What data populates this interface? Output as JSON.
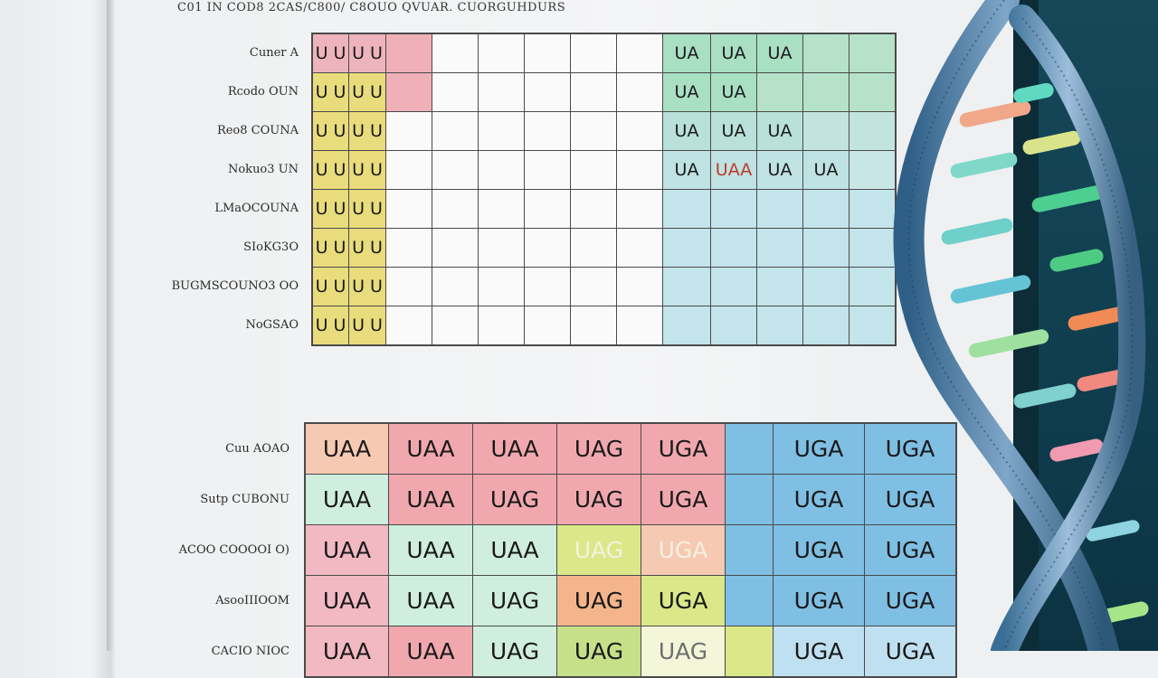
{
  "document": {
    "title": "C01 IN COD8 2CAS/C800/ C8OUO QVUAR. CUORGUHDURS"
  },
  "top_table": {
    "row_labels": [
      "Cuner A",
      "Rcodo OUN",
      "Reo8 COUNA",
      "Nokuo3 UN",
      "LMaOCOUNA",
      "SIoKG3O",
      "BUGMSCOUNO3 OO",
      "NoGSAO"
    ],
    "rows": [
      [
        {
          "t": "U U",
          "bg": "#eeb4bd"
        },
        {
          "t": "U U",
          "bg": "#eeb4bd"
        },
        {
          "t": "",
          "bg": "#efb0b8"
        },
        {
          "t": "",
          "bg": "#fafafa"
        },
        {
          "t": "",
          "bg": "#fafafa"
        },
        {
          "t": "",
          "bg": "#fafafa"
        },
        {
          "t": "",
          "bg": "#fafafa"
        },
        {
          "t": "",
          "bg": "#fafafa"
        },
        {
          "t": "UA",
          "bg": "#a9dfc3"
        },
        {
          "t": "UA",
          "bg": "#a9dfc3"
        },
        {
          "t": "UA",
          "bg": "#a9dfc3"
        },
        {
          "t": "",
          "bg": "#b5e2c9"
        },
        {
          "t": "",
          "bg": "#b5e2c9"
        }
      ],
      [
        {
          "t": "U U",
          "bg": "#e9dc7c"
        },
        {
          "t": "U U",
          "bg": "#e9dc7c"
        },
        {
          "t": "",
          "bg": "#efb0b8"
        },
        {
          "t": "",
          "bg": "#fafafa"
        },
        {
          "t": "",
          "bg": "#fafafa"
        },
        {
          "t": "",
          "bg": "#fafafa"
        },
        {
          "t": "",
          "bg": "#fafafa"
        },
        {
          "t": "",
          "bg": "#fafafa"
        },
        {
          "t": "UA",
          "bg": "#a9dfc3"
        },
        {
          "t": "UA",
          "bg": "#a9dfc3"
        },
        {
          "t": "",
          "bg": "#b5e2c9"
        },
        {
          "t": "",
          "bg": "#b5e2c9"
        },
        {
          "t": "",
          "bg": "#b5e2c9"
        }
      ],
      [
        {
          "t": "U U",
          "bg": "#e9dc7c"
        },
        {
          "t": "U U",
          "bg": "#e9dc7c"
        },
        {
          "t": "",
          "bg": "#fafafa"
        },
        {
          "t": "",
          "bg": "#fafafa"
        },
        {
          "t": "",
          "bg": "#fafafa"
        },
        {
          "t": "",
          "bg": "#fafafa"
        },
        {
          "t": "",
          "bg": "#fafafa"
        },
        {
          "t": "",
          "bg": "#fafafa"
        },
        {
          "t": "UA",
          "bg": "#b9e0da"
        },
        {
          "t": "UA",
          "bg": "#b9e0da"
        },
        {
          "t": "UA",
          "bg": "#b9e0da"
        },
        {
          "t": "",
          "bg": "#c2e4de"
        },
        {
          "t": "",
          "bg": "#c2e4de"
        }
      ],
      [
        {
          "t": "U U",
          "bg": "#e9dc7c"
        },
        {
          "t": "U U",
          "bg": "#e9dc7c"
        },
        {
          "t": "",
          "bg": "#fafafa"
        },
        {
          "t": "",
          "bg": "#fafafa"
        },
        {
          "t": "",
          "bg": "#fafafa"
        },
        {
          "t": "",
          "bg": "#fafafa"
        },
        {
          "t": "",
          "bg": "#fafafa"
        },
        {
          "t": "",
          "bg": "#fafafa"
        },
        {
          "t": "UA",
          "bg": "#bfe2e3"
        },
        {
          "t": "UAA",
          "bg": "#bfe2e3",
          "c": "red"
        },
        {
          "t": "UA",
          "bg": "#bfe2e3"
        },
        {
          "t": "UA",
          "bg": "#bfe2e3"
        },
        {
          "t": "",
          "bg": "#c8e6e6"
        }
      ],
      [
        {
          "t": "U U",
          "bg": "#e9dc7c"
        },
        {
          "t": "U U",
          "bg": "#e9dc7c"
        },
        {
          "t": "",
          "bg": "#fafafa"
        },
        {
          "t": "",
          "bg": "#fafafa"
        },
        {
          "t": "",
          "bg": "#fafafa"
        },
        {
          "t": "",
          "bg": "#fafafa"
        },
        {
          "t": "",
          "bg": "#fafafa"
        },
        {
          "t": "",
          "bg": "#fafafa"
        },
        {
          "t": "",
          "bg": "#c3e4ea"
        },
        {
          "t": "",
          "bg": "#c3e4ea"
        },
        {
          "t": "",
          "bg": "#c3e4ea"
        },
        {
          "t": "",
          "bg": "#c3e4ea"
        },
        {
          "t": "",
          "bg": "#c3e4ea"
        }
      ],
      [
        {
          "t": "U U",
          "bg": "#e9dc7c"
        },
        {
          "t": "U U",
          "bg": "#e9dc7c"
        },
        {
          "t": "",
          "bg": "#fafafa"
        },
        {
          "t": "",
          "bg": "#fafafa"
        },
        {
          "t": "",
          "bg": "#fafafa"
        },
        {
          "t": "",
          "bg": "#fafafa"
        },
        {
          "t": "",
          "bg": "#fafafa"
        },
        {
          "t": "",
          "bg": "#fafafa"
        },
        {
          "t": "",
          "bg": "#c3e4ea"
        },
        {
          "t": "",
          "bg": "#c3e4ea"
        },
        {
          "t": "",
          "bg": "#c3e4ea"
        },
        {
          "t": "",
          "bg": "#c3e4ea"
        },
        {
          "t": "",
          "bg": "#c3e4ea"
        }
      ],
      [
        {
          "t": "U U",
          "bg": "#e9dc7c"
        },
        {
          "t": "U U",
          "bg": "#e9dc7c"
        },
        {
          "t": "",
          "bg": "#fafafa"
        },
        {
          "t": "",
          "bg": "#fafafa"
        },
        {
          "t": "",
          "bg": "#fafafa"
        },
        {
          "t": "",
          "bg": "#fafafa"
        },
        {
          "t": "",
          "bg": "#fafafa"
        },
        {
          "t": "",
          "bg": "#fafafa"
        },
        {
          "t": "",
          "bg": "#c3e4ea"
        },
        {
          "t": "",
          "bg": "#c3e4ea"
        },
        {
          "t": "",
          "bg": "#c3e4ea"
        },
        {
          "t": "",
          "bg": "#c3e4ea"
        },
        {
          "t": "",
          "bg": "#c3e4ea"
        }
      ],
      [
        {
          "t": "U U",
          "bg": "#e9dc7c"
        },
        {
          "t": "U U",
          "bg": "#e9dc7c"
        },
        {
          "t": "",
          "bg": "#fafafa"
        },
        {
          "t": "",
          "bg": "#fafafa"
        },
        {
          "t": "",
          "bg": "#fafafa"
        },
        {
          "t": "",
          "bg": "#fafafa"
        },
        {
          "t": "",
          "bg": "#fafafa"
        },
        {
          "t": "",
          "bg": "#fafafa"
        },
        {
          "t": "",
          "bg": "#c3e4ea"
        },
        {
          "t": "",
          "bg": "#c3e4ea"
        },
        {
          "t": "",
          "bg": "#c3e4ea"
        },
        {
          "t": "",
          "bg": "#c3e4ea"
        },
        {
          "t": "",
          "bg": "#c3e4ea"
        }
      ]
    ]
  },
  "bottom_table": {
    "row_labels": [
      "Cuu AOAO",
      "Sutp CUBONU",
      "ACOO COOOOI O)",
      "AsooIIIOOM",
      "CACIO NIOC"
    ],
    "rows": [
      [
        {
          "t": "UAA",
          "bg": "#f6c9b2"
        },
        {
          "t": "UAA",
          "bg": "#f0a8ae"
        },
        {
          "t": "UAA",
          "bg": "#f0a8ae"
        },
        {
          "t": "UAG",
          "bg": "#f0a8ae"
        },
        {
          "t": "UGA",
          "bg": "#f0a8ae"
        },
        {
          "t": "",
          "bg": "#7fbfe3"
        },
        {
          "t": "UGA",
          "bg": "#7fbfe3"
        },
        {
          "t": "UGA",
          "bg": "#7fbfe3"
        }
      ],
      [
        {
          "t": "UAA",
          "bg": "#cfeedd"
        },
        {
          "t": "UAA",
          "bg": "#f0a8ae"
        },
        {
          "t": "UAG",
          "bg": "#f0a8ae"
        },
        {
          "t": "UAG",
          "bg": "#f0a8ae"
        },
        {
          "t": "UGA",
          "bg": "#f0a8ae"
        },
        {
          "t": "",
          "bg": "#7fbfe3"
        },
        {
          "t": "UGA",
          "bg": "#7fbfe3"
        },
        {
          "t": "UGA",
          "bg": "#7fbfe3"
        }
      ],
      [
        {
          "t": "UAA",
          "bg": "#f2b9c2"
        },
        {
          "t": "UAA",
          "bg": "#cfeedd"
        },
        {
          "t": "UAA",
          "bg": "#cfeedd"
        },
        {
          "t": "UAG",
          "bg": "#dbe889",
          "c": "faded"
        },
        {
          "t": "UGA",
          "bg": "#f6c9b2",
          "c": "faded"
        },
        {
          "t": "",
          "bg": "#7fbfe3"
        },
        {
          "t": "UGA",
          "bg": "#7fbfe3"
        },
        {
          "t": "UGA",
          "bg": "#7fbfe3"
        }
      ],
      [
        {
          "t": "UAA",
          "bg": "#f2b9c2"
        },
        {
          "t": "UAA",
          "bg": "#cfeedd"
        },
        {
          "t": "UAG",
          "bg": "#cfeedd"
        },
        {
          "t": "UAG",
          "bg": "#f4b58c"
        },
        {
          "t": "UGA",
          "bg": "#dbe889"
        },
        {
          "t": "",
          "bg": "#7fbfe3"
        },
        {
          "t": "UGA",
          "bg": "#7fbfe3"
        },
        {
          "t": "UGA",
          "bg": "#7fbfe3"
        }
      ],
      [
        {
          "t": "UAA",
          "bg": "#f2b9c2"
        },
        {
          "t": "UAA",
          "bg": "#f0a8ae"
        },
        {
          "t": "UAG",
          "bg": "#cfeedd"
        },
        {
          "t": "UAG",
          "bg": "#c6e08a"
        },
        {
          "t": "UAG",
          "bg": "#f3f6d8",
          "c": "dim"
        },
        {
          "t": "",
          "bg": "#dbe889"
        },
        {
          "t": "UGA",
          "bg": "#bfe0f0"
        },
        {
          "t": "UGA",
          "bg": "#bfe0f0"
        }
      ]
    ]
  },
  "colors": {
    "grid_line": "#4a4a4a",
    "side_panel": "#16485a",
    "helix_backbone": "#4f7fa8"
  },
  "decoration": {
    "image": "dna-double-helix-illustration"
  }
}
